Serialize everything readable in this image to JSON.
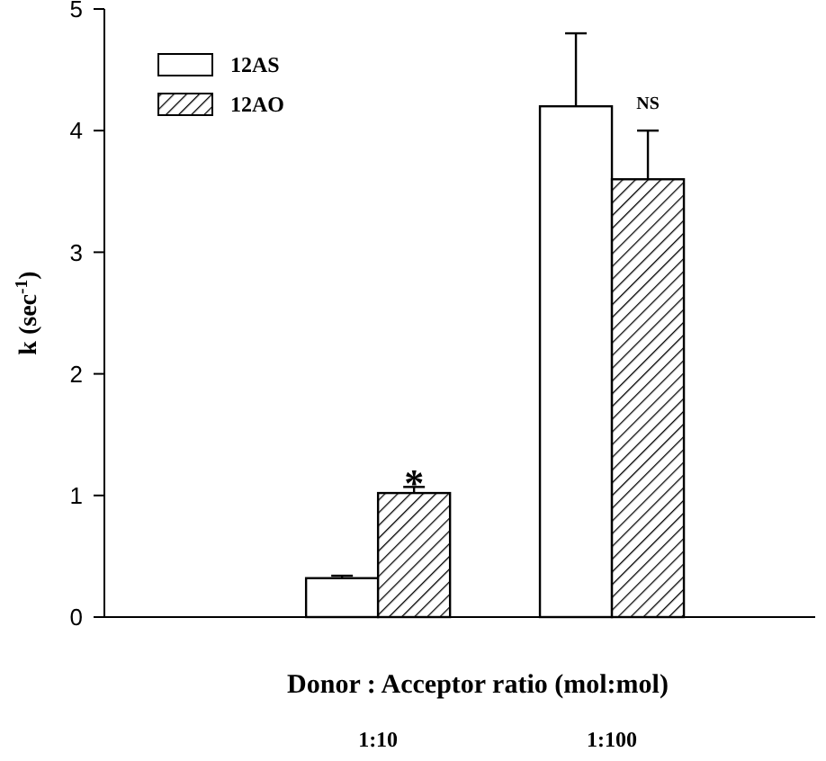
{
  "chart_data": {
    "type": "bar",
    "xlabel": "Donor : Acceptor ratio (mol:mol)",
    "ylabel": "k (sec$^{-1}$)",
    "categories": [
      "1:10",
      "1:100"
    ],
    "series": [
      {
        "name": "12AS",
        "color": "#ffffff",
        "values": [
          0.32,
          4.2
        ],
        "errors": [
          [
            0.32,
            0.34
          ],
          [
            4.2,
            4.8
          ]
        ]
      },
      {
        "name": "12AO",
        "color": "#000000",
        "values": [
          1.02,
          3.6
        ],
        "errors": [
          [
            1.02,
            1.07
          ],
          [
            3.6,
            4.0
          ]
        ]
      }
    ],
    "ylim": [
      0,
      5
    ],
    "yticks": [
      0,
      1,
      2,
      3,
      4,
      5
    ],
    "legend": "top left",
    "annotations": [
      {
        "text": "*",
        "x": "1:10",
        "y": 1.07
      },
      {
        "text": "NS",
        "x": "1:100",
        "y": 4.0
      }
    ]
  }
}
